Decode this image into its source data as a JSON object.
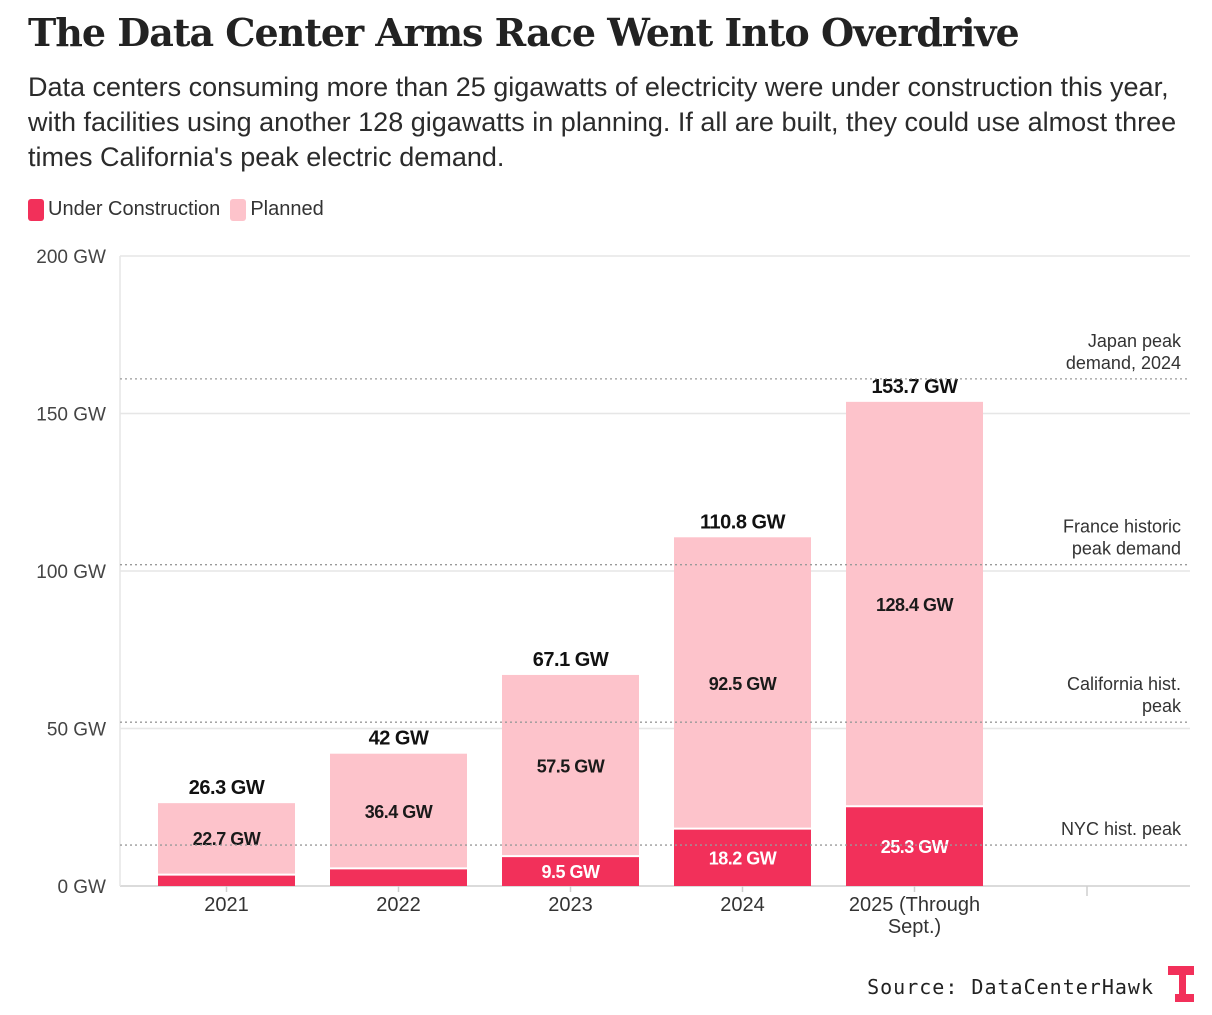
{
  "title": "The Data Center Arms Race Went Into Overdrive",
  "subtitle": "Data centers consuming more than 25 gigawatts of electricity were under construction this year, with facilities using another 128 gigawatts in planning. If all are built, they could use almost three times California's peak electric demand.",
  "source": "Source: DataCenterHawk",
  "colors": {
    "under_construction": "#f2305a",
    "planned": "#fdc3cb",
    "grid": "#e6e6e6",
    "reference": "#9a9a9a"
  },
  "chart_data": {
    "type": "bar",
    "stacked": true,
    "categories": [
      "2021",
      "2022",
      "2023",
      "2024",
      "2025 (Through Sept.)"
    ],
    "category_lines": [
      [
        "2021"
      ],
      [
        "2022"
      ],
      [
        "2023"
      ],
      [
        "2024"
      ],
      [
        "2025 (Through",
        "Sept.)"
      ]
    ],
    "series": [
      {
        "name": "Under Construction",
        "values": [
          3.6,
          5.6,
          9.5,
          18.2,
          25.3
        ],
        "labels": [
          "",
          "",
          "9.5 GW",
          "18.2 GW",
          "25.3 GW"
        ]
      },
      {
        "name": "Planned",
        "values": [
          22.7,
          36.4,
          57.5,
          92.5,
          128.4
        ],
        "labels": [
          "22.7 GW",
          "36.4 GW",
          "57.5 GW",
          "92.5 GW",
          "128.4 GW"
        ]
      }
    ],
    "totals": [
      "26.3 GW",
      "42 GW",
      "67.1 GW",
      "110.8 GW",
      "153.7 GW"
    ],
    "y_ticks": [
      0,
      50,
      100,
      150,
      200
    ],
    "y_tick_labels": [
      "0 GW",
      "50 GW",
      "100 GW",
      "150 GW",
      "200 GW"
    ],
    "ylim": [
      0,
      200
    ],
    "reference_lines": [
      {
        "value": 161,
        "label": [
          "Japan peak",
          "demand, 2024"
        ]
      },
      {
        "value": 102,
        "label": [
          "France historic",
          "peak demand"
        ]
      },
      {
        "value": 52,
        "label": [
          "California hist.",
          "peak"
        ]
      },
      {
        "value": 13,
        "label": [
          "NYC hist. peak"
        ]
      }
    ],
    "legend_position": "top-left"
  }
}
